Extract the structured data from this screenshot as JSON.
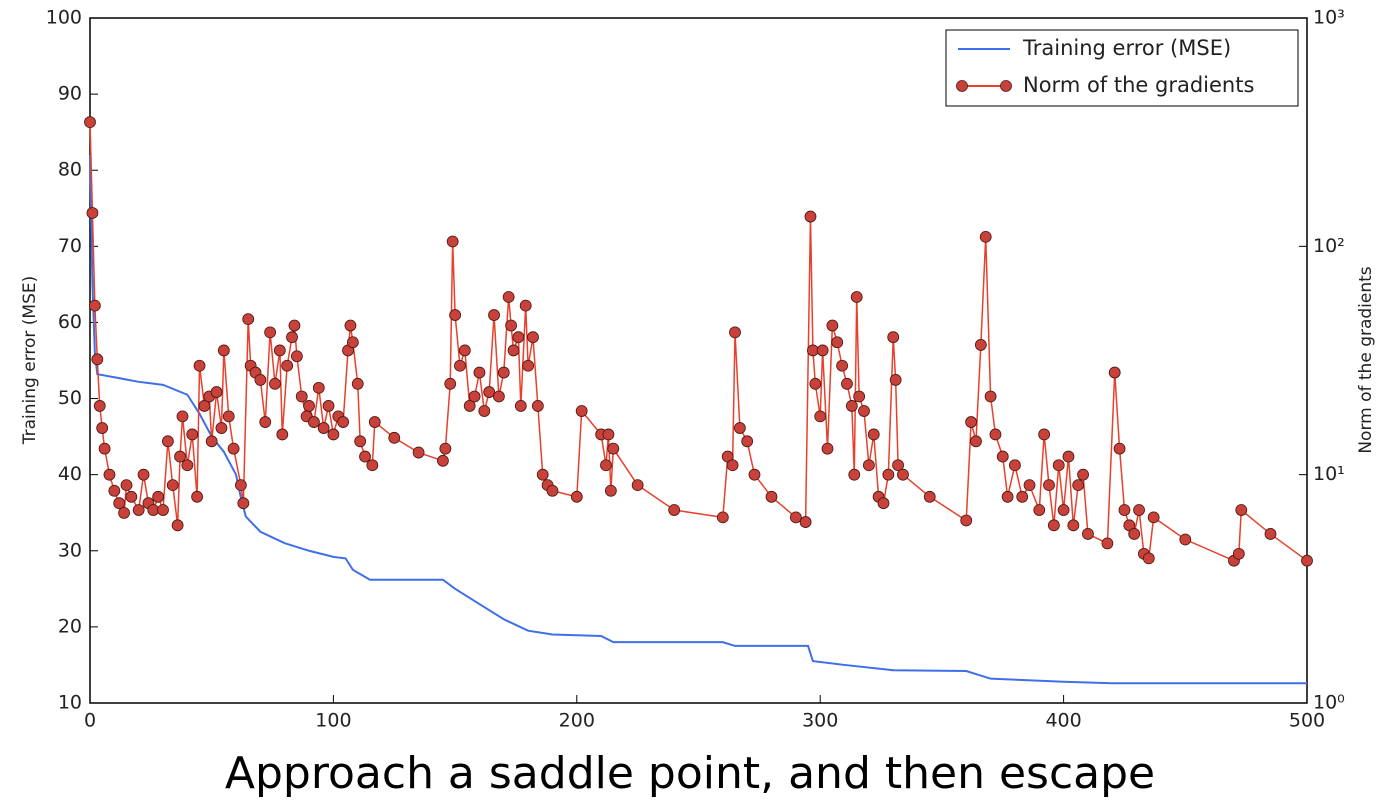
{
  "chart_data": {
    "type": "line",
    "caption": "Approach a saddle point, and then escape",
    "ylabel": "Training error (MSE)",
    "y2label": "Norm of the gradients",
    "xlim": [
      0,
      500
    ],
    "xticks": [
      0,
      100,
      200,
      300,
      400,
      500
    ],
    "ylim": [
      10,
      100
    ],
    "yticks": [
      10,
      20,
      30,
      40,
      50,
      60,
      70,
      80,
      90,
      100
    ],
    "y2lim": [
      1,
      1000
    ],
    "y2scale": "log",
    "y2ticks": [
      {
        "value": 1,
        "label": "10⁰"
      },
      {
        "value": 10,
        "label": "10¹"
      },
      {
        "value": 100,
        "label": "10²"
      },
      {
        "value": 1000,
        "label": "10³"
      }
    ],
    "legend": "upper right",
    "series": [
      {
        "name": "Training error (MSE)",
        "color": "#3f6fe8",
        "marker": false,
        "x": [
          0,
          1,
          2,
          3,
          10,
          20,
          30,
          40,
          45,
          50,
          55,
          60,
          62,
          64,
          70,
          80,
          90,
          100,
          105,
          108,
          115,
          145,
          150,
          160,
          170,
          180,
          190,
          210,
          215,
          260,
          265,
          295,
          297,
          310,
          330,
          360,
          370,
          400,
          420,
          500
        ],
        "values": [
          82,
          65,
          56,
          53.2,
          52.8,
          52.2,
          51.8,
          50.5,
          48,
          45,
          43,
          40,
          37,
          34.5,
          32.5,
          31,
          30,
          29.2,
          29,
          27.5,
          26.2,
          26.2,
          25,
          23,
          21,
          19.5,
          19,
          18.8,
          18,
          18,
          17.5,
          17.5,
          15.5,
          15,
          14.3,
          14.2,
          13.2,
          12.8,
          12.6,
          12.6
        ]
      },
      {
        "name": "Norm of the gradients",
        "color": "#e8402c",
        "marker": true,
        "markerColor": "#c8413a",
        "axis": "y2",
        "x": [
          0,
          1,
          2,
          3,
          4,
          5,
          6,
          8,
          10,
          12,
          14,
          15,
          17,
          20,
          22,
          24,
          26,
          28,
          30,
          32,
          34,
          36,
          37,
          38,
          40,
          42,
          44,
          45,
          47,
          49,
          50,
          52,
          54,
          55,
          57,
          59,
          62,
          63,
          65,
          66,
          68,
          70,
          72,
          74,
          76,
          78,
          79,
          81,
          83,
          84,
          85,
          87,
          89,
          90,
          92,
          94,
          96,
          98,
          100,
          102,
          104,
          106,
          107,
          108,
          110,
          111,
          113,
          116,
          117,
          125,
          135,
          145,
          146,
          148,
          149,
          150,
          152,
          154,
          156,
          158,
          160,
          162,
          164,
          166,
          168,
          170,
          172,
          173,
          174,
          176,
          177,
          179,
          180,
          182,
          184,
          186,
          188,
          190,
          200,
          202,
          210,
          212,
          213,
          214,
          215,
          225,
          240,
          260,
          262,
          264,
          265,
          267,
          270,
          273,
          280,
          290,
          294,
          296,
          297,
          298,
          300,
          301,
          303,
          305,
          307,
          309,
          311,
          313,
          314,
          315,
          316,
          318,
          320,
          322,
          324,
          326,
          328,
          330,
          331,
          332,
          334,
          345,
          360,
          362,
          364,
          366,
          368,
          370,
          372,
          375,
          377,
          380,
          383,
          386,
          390,
          392,
          394,
          396,
          398,
          400,
          402,
          404,
          406,
          408,
          410,
          418,
          421,
          423,
          425,
          427,
          429,
          431,
          433,
          435,
          437,
          450,
          470,
          472,
          473,
          485,
          500
        ],
        "values": [
          350,
          140,
          55,
          32,
          20,
          16,
          13,
          10,
          8.5,
          7.5,
          6.8,
          9,
          8,
          7,
          10,
          7.5,
          7,
          8,
          7,
          14,
          9,
          6,
          12,
          18,
          11,
          15,
          8,
          30,
          20,
          22,
          14,
          23,
          16,
          35,
          18,
          13,
          9,
          7.5,
          48,
          30,
          28,
          26,
          17,
          42,
          25,
          35,
          15,
          30,
          40,
          45,
          33,
          22,
          18,
          20,
          17,
          24,
          16,
          20,
          15,
          18,
          17,
          35,
          45,
          38,
          25,
          14,
          12,
          11,
          17,
          14.5,
          12.5,
          11.5,
          13,
          25,
          105,
          50,
          30,
          35,
          20,
          22,
          28,
          19,
          23,
          50,
          22,
          28,
          60,
          45,
          35,
          40,
          20,
          55,
          30,
          40,
          20,
          10,
          9,
          8.5,
          8,
          19,
          15,
          11,
          15,
          8.5,
          13,
          9,
          7,
          6.5,
          12,
          11,
          42,
          16,
          14,
          10,
          8,
          6.5,
          6.2,
          135,
          35,
          25,
          18,
          35,
          13,
          45,
          38,
          30,
          25,
          20,
          10,
          60,
          22,
          19,
          11,
          15,
          8,
          7.5,
          10,
          40,
          26,
          11,
          10,
          8,
          6.3,
          17,
          14,
          37,
          110,
          22,
          15,
          12,
          8,
          11,
          8,
          9,
          7,
          15,
          9,
          6,
          11,
          7,
          12,
          6,
          9,
          10,
          5.5,
          5,
          28,
          13,
          7,
          6,
          5.5,
          7,
          4.5,
          4.3,
          6.5,
          5.2,
          4.2,
          4.5,
          7,
          5.5,
          4.2
        ]
      }
    ]
  }
}
